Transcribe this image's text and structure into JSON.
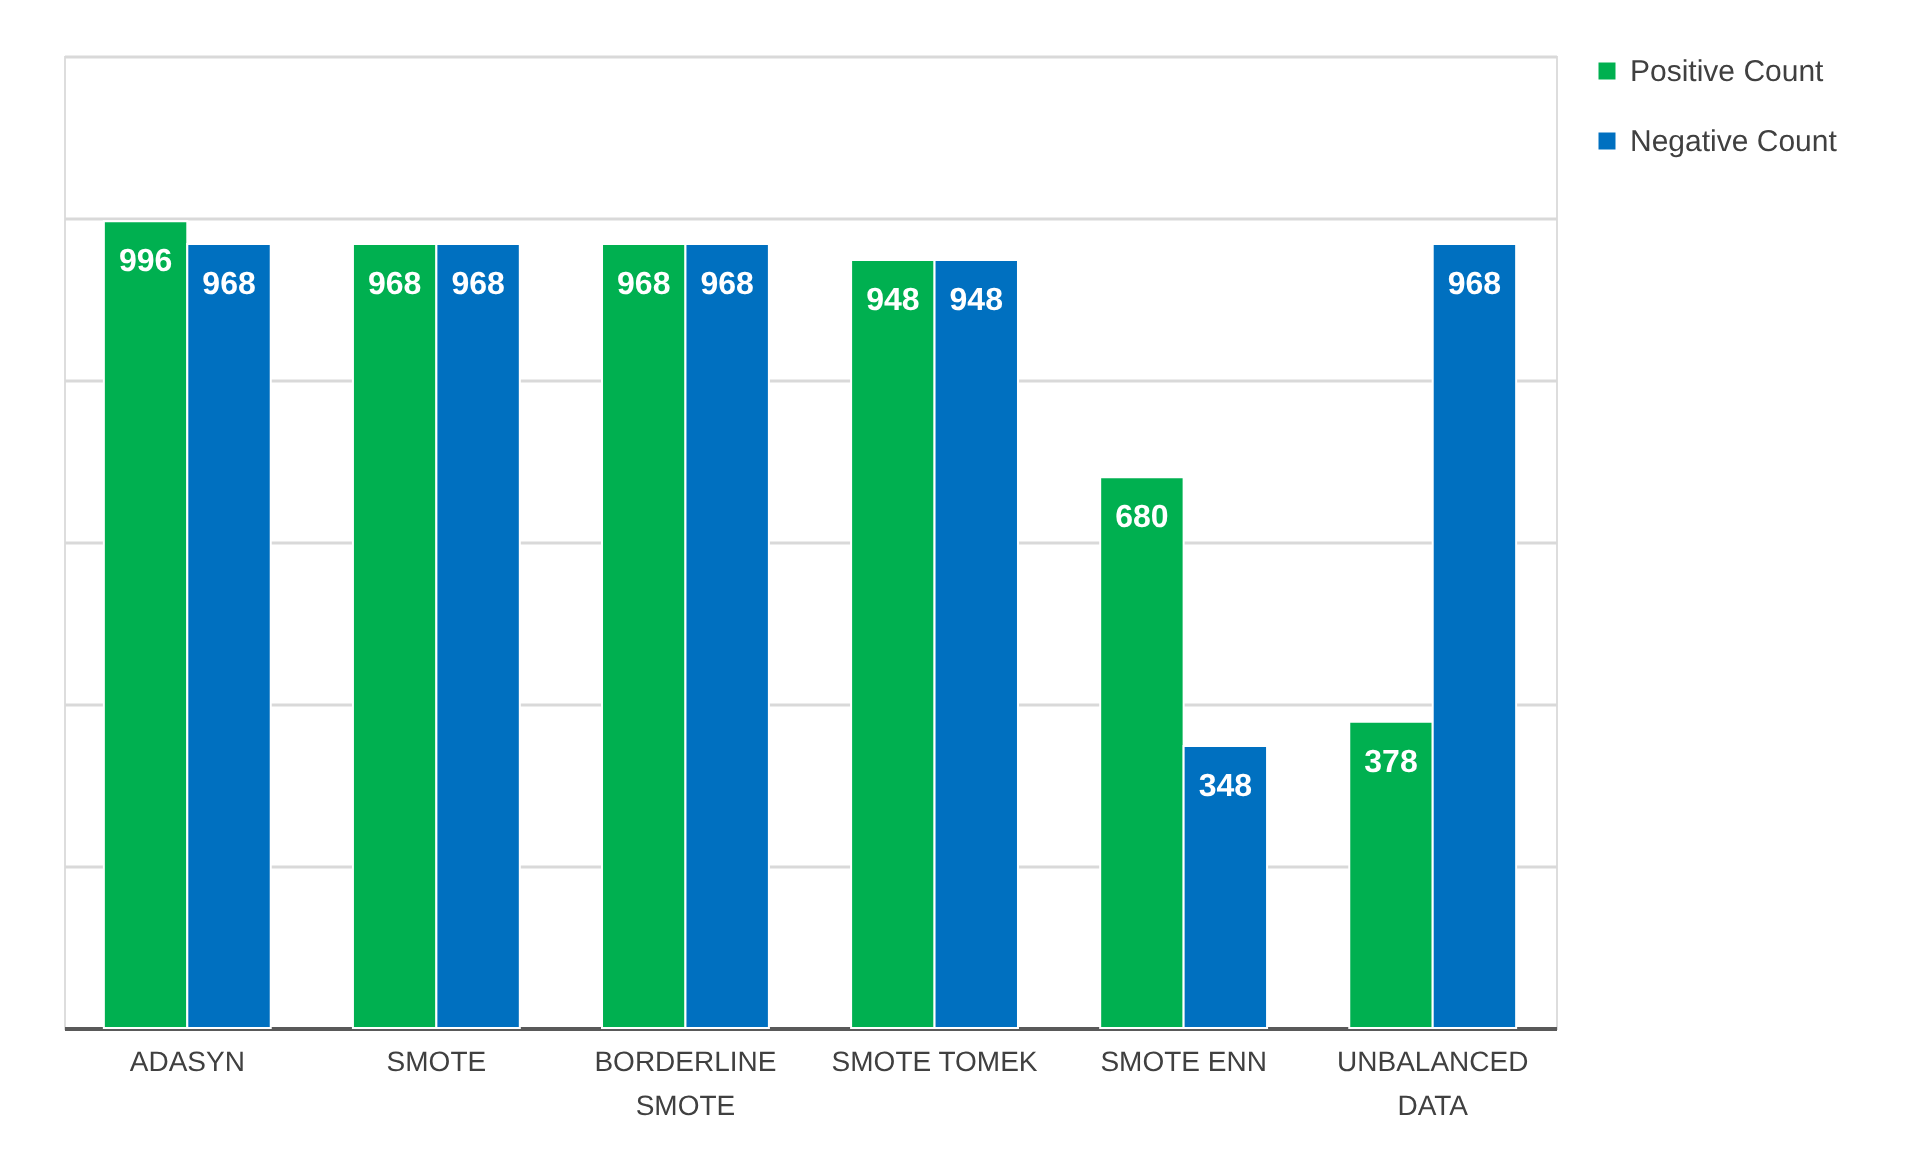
{
  "chart_data": {
    "type": "bar",
    "categories": [
      "ADASYN",
      "SMOTE",
      "BORDERLINE SMOTE",
      "SMOTE TOMEK",
      "SMOTE ENN",
      "UNBALANCED DATA"
    ],
    "series": [
      {
        "name": "Positive Count",
        "color": "#00b050",
        "values": [
          996,
          968,
          968,
          948,
          680,
          378
        ]
      },
      {
        "name": "Negative Count",
        "color": "#0070c0",
        "values": [
          968,
          968,
          968,
          948,
          348,
          968
        ]
      }
    ],
    "ylim": [
      0,
      1200
    ],
    "yticks": [
      {
        "value": 0,
        "label": null
      },
      {
        "value": 200,
        "label": null
      },
      {
        "value": 400,
        "label": null
      },
      {
        "value": 600,
        "label": null
      },
      {
        "value": 800,
        "label": null
      },
      {
        "value": 1000,
        "label": null
      },
      {
        "value": 1200,
        "label": null
      }
    ],
    "tick_labels": "x",
    "grid": "y",
    "legend": "right",
    "data_labels": true
  }
}
